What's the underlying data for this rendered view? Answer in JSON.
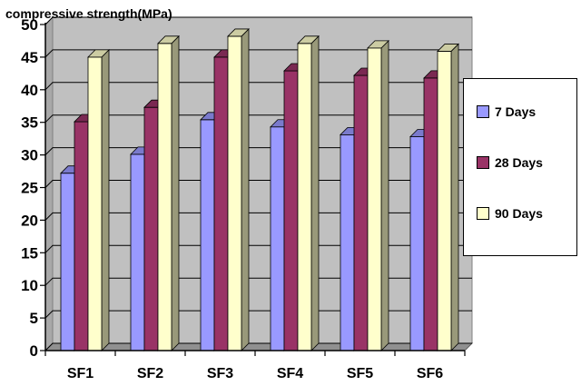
{
  "chart_data": {
    "type": "bar",
    "title": "",
    "ylabel": "compressive strength(MPa)",
    "xlabel": "",
    "categories": [
      "SF1",
      "SF2",
      "SF3",
      "SF4",
      "SF5",
      "SF6"
    ],
    "ylim": [
      0,
      50
    ],
    "yticks": [
      0,
      5,
      10,
      15,
      20,
      25,
      30,
      35,
      40,
      45,
      50
    ],
    "grid": true,
    "legend_position": "right",
    "series": [
      {
        "name": "7 Days",
        "color": "#9999FF",
        "values": [
          27.2,
          30.1,
          35.4,
          34.3,
          33.1,
          32.8
        ]
      },
      {
        "name": "28 Days",
        "color": "#993366",
        "values": [
          35.1,
          37.3,
          45.0,
          42.9,
          42.2,
          41.8
        ]
      },
      {
        "name": "90 Days",
        "color": "#FFFFCC",
        "values": [
          45.0,
          47.1,
          48.2,
          47.1,
          46.4,
          45.9
        ]
      }
    ]
  }
}
